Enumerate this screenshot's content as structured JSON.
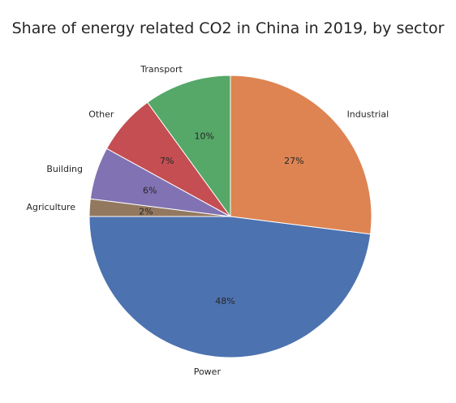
{
  "chart_data": {
    "type": "pie",
    "title": "Share of energy related CO2 in China in 2019, by sector",
    "start_angle_deg": 90,
    "direction": "clockwise",
    "slices": [
      {
        "label": "Industrial",
        "value": 27,
        "pct_label": "27%",
        "color": "#dd8452"
      },
      {
        "label": "Power",
        "value": 48,
        "pct_label": "48%",
        "color": "#4c72b0"
      },
      {
        "label": "Agriculture",
        "value": 2,
        "pct_label": "2%",
        "color": "#937860"
      },
      {
        "label": "Building",
        "value": 6,
        "pct_label": "6%",
        "color": "#8172b3"
      },
      {
        "label": "Other",
        "value": 7,
        "pct_label": "7%",
        "color": "#c44e52"
      },
      {
        "label": "Transport",
        "value": 10,
        "pct_label": "10%",
        "color": "#55a868"
      }
    ]
  }
}
